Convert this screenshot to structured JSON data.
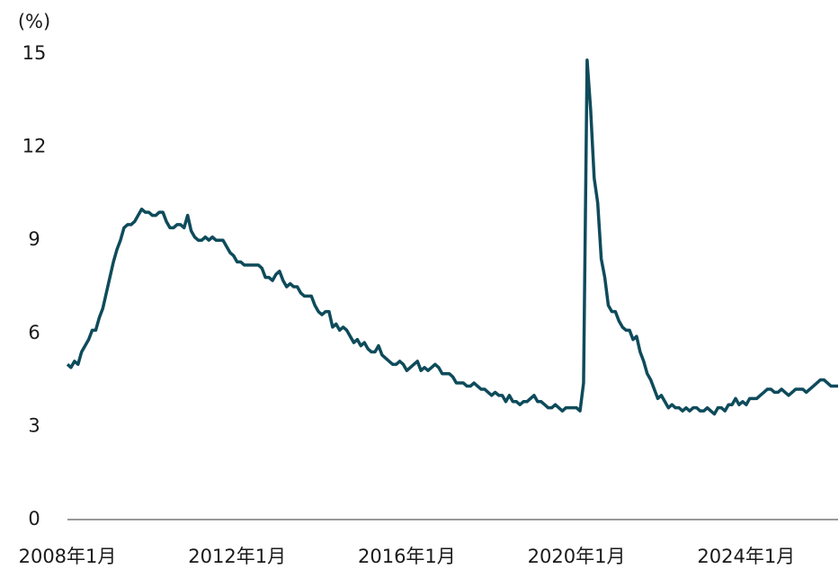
{
  "chart_data": {
    "type": "line",
    "y_label": "(%)",
    "x": [
      "2008-01",
      "2008-02",
      "2008-03",
      "2008-04",
      "2008-05",
      "2008-06",
      "2008-07",
      "2008-08",
      "2008-09",
      "2008-10",
      "2008-11",
      "2008-12",
      "2009-01",
      "2009-02",
      "2009-03",
      "2009-04",
      "2009-05",
      "2009-06",
      "2009-07",
      "2009-08",
      "2009-09",
      "2009-10",
      "2009-11",
      "2009-12",
      "2010-01",
      "2010-02",
      "2010-03",
      "2010-04",
      "2010-05",
      "2010-06",
      "2010-07",
      "2010-08",
      "2010-09",
      "2010-10",
      "2010-11",
      "2010-12",
      "2011-01",
      "2011-02",
      "2011-03",
      "2011-04",
      "2011-05",
      "2011-06",
      "2011-07",
      "2011-08",
      "2011-09",
      "2011-10",
      "2011-11",
      "2011-12",
      "2012-01",
      "2012-02",
      "2012-03",
      "2012-04",
      "2012-05",
      "2012-06",
      "2012-07",
      "2012-08",
      "2012-09",
      "2012-10",
      "2012-11",
      "2012-12",
      "2013-01",
      "2013-02",
      "2013-03",
      "2013-04",
      "2013-05",
      "2013-06",
      "2013-07",
      "2013-08",
      "2013-09",
      "2013-10",
      "2013-11",
      "2013-12",
      "2014-01",
      "2014-02",
      "2014-03",
      "2014-04",
      "2014-05",
      "2014-06",
      "2014-07",
      "2014-08",
      "2014-09",
      "2014-10",
      "2014-11",
      "2014-12",
      "2015-01",
      "2015-02",
      "2015-03",
      "2015-04",
      "2015-05",
      "2015-06",
      "2015-07",
      "2015-08",
      "2015-09",
      "2015-10",
      "2015-11",
      "2015-12",
      "2016-01",
      "2016-02",
      "2016-03",
      "2016-04",
      "2016-05",
      "2016-06",
      "2016-07",
      "2016-08",
      "2016-09",
      "2016-10",
      "2016-11",
      "2016-12",
      "2017-01",
      "2017-02",
      "2017-03",
      "2017-04",
      "2017-05",
      "2017-06",
      "2017-07",
      "2017-08",
      "2017-09",
      "2017-10",
      "2017-11",
      "2017-12",
      "2018-01",
      "2018-02",
      "2018-03",
      "2018-04",
      "2018-05",
      "2018-06",
      "2018-07",
      "2018-08",
      "2018-09",
      "2018-10",
      "2018-11",
      "2018-12",
      "2019-01",
      "2019-02",
      "2019-03",
      "2019-04",
      "2019-05",
      "2019-06",
      "2019-07",
      "2019-08",
      "2019-09",
      "2019-10",
      "2019-11",
      "2019-12",
      "2020-01",
      "2020-02",
      "2020-03",
      "2020-04",
      "2020-05",
      "2020-06",
      "2020-07",
      "2020-08",
      "2020-09",
      "2020-10",
      "2020-11",
      "2020-12",
      "2021-01",
      "2021-02",
      "2021-03",
      "2021-04",
      "2021-05",
      "2021-06",
      "2021-07",
      "2021-08",
      "2021-09",
      "2021-10",
      "2021-11",
      "2021-12",
      "2022-01",
      "2022-02",
      "2022-03",
      "2022-04",
      "2022-05",
      "2022-06",
      "2022-07",
      "2022-08",
      "2022-09",
      "2022-10",
      "2022-11",
      "2022-12",
      "2023-01",
      "2023-02",
      "2023-03",
      "2023-04",
      "2023-05",
      "2023-06",
      "2023-07",
      "2023-08",
      "2023-09",
      "2023-10",
      "2023-11",
      "2023-12",
      "2024-01",
      "2024-02",
      "2024-03",
      "2024-04",
      "2024-05",
      "2024-06",
      "2024-07",
      "2024-08",
      "2024-09",
      "2024-10",
      "2024-11",
      "2024-12",
      "2025-01",
      "2025-02",
      "2025-03",
      "2025-04",
      "2025-05",
      "2025-06",
      "2025-07",
      "2025-08",
      "2025-09",
      "2025-10",
      "2025-11",
      "2025-12",
      "2026-01",
      "2026-02",
      "2026-03"
    ],
    "series": [
      {
        "color": "#0e4b5b",
        "values": [
          5.0,
          4.9,
          5.1,
          5.0,
          5.4,
          5.6,
          5.8,
          6.1,
          6.1,
          6.5,
          6.8,
          7.3,
          7.8,
          8.3,
          8.7,
          9.0,
          9.4,
          9.5,
          9.5,
          9.6,
          9.8,
          10.0,
          9.9,
          9.9,
          9.8,
          9.8,
          9.9,
          9.9,
          9.6,
          9.4,
          9.4,
          9.5,
          9.5,
          9.4,
          9.8,
          9.3,
          9.1,
          9.0,
          9.0,
          9.1,
          9.0,
          9.1,
          9.0,
          9.0,
          9.0,
          8.8,
          8.6,
          8.5,
          8.3,
          8.3,
          8.2,
          8.2,
          8.2,
          8.2,
          8.2,
          8.1,
          7.8,
          7.8,
          7.7,
          7.9,
          8.0,
          7.7,
          7.5,
          7.6,
          7.5,
          7.5,
          7.3,
          7.2,
          7.2,
          7.2,
          6.9,
          6.7,
          6.6,
          6.7,
          6.7,
          6.2,
          6.3,
          6.1,
          6.2,
          6.1,
          5.9,
          5.7,
          5.8,
          5.6,
          5.7,
          5.5,
          5.4,
          5.4,
          5.6,
          5.3,
          5.2,
          5.1,
          5.0,
          5.0,
          5.1,
          5.0,
          4.8,
          4.9,
          5.0,
          5.1,
          4.8,
          4.9,
          4.8,
          4.9,
          5.0,
          4.9,
          4.7,
          4.7,
          4.7,
          4.6,
          4.4,
          4.4,
          4.4,
          4.3,
          4.3,
          4.4,
          4.3,
          4.2,
          4.2,
          4.1,
          4.0,
          4.1,
          4.0,
          4.0,
          3.8,
          4.0,
          3.8,
          3.8,
          3.7,
          3.8,
          3.8,
          3.9,
          4.0,
          3.8,
          3.8,
          3.7,
          3.6,
          3.6,
          3.7,
          3.6,
          3.5,
          3.6,
          3.6,
          3.6,
          3.6,
          3.5,
          4.4,
          14.8,
          13.2,
          11.0,
          10.2,
          8.4,
          7.8,
          6.9,
          6.7,
          6.7,
          6.4,
          6.2,
          6.1,
          6.1,
          5.8,
          5.9,
          5.4,
          5.1,
          4.7,
          4.5,
          4.2,
          3.9,
          4.0,
          3.8,
          3.6,
          3.7,
          3.6,
          3.6,
          3.5,
          3.6,
          3.5,
          3.6,
          3.6,
          3.5,
          3.5,
          3.6,
          3.5,
          3.4,
          3.6,
          3.6,
          3.5,
          3.7,
          3.7,
          3.9,
          3.7,
          3.8,
          3.7,
          3.9,
          3.9,
          3.9,
          4.0,
          4.1,
          4.2,
          4.2,
          4.1,
          4.1,
          4.2,
          4.1,
          4.0,
          4.1,
          4.2,
          4.2,
          4.2,
          4.1,
          4.2,
          4.3,
          4.4,
          4.5,
          4.5,
          4.4,
          4.3,
          4.3,
          4.3
        ]
      }
    ],
    "xlim": [
      "2008-01",
      "2026-03"
    ],
    "xticks": [
      {
        "value": "2008-01",
        "label": "2008年1月"
      },
      {
        "value": "2012-01",
        "label": "2012年1月"
      },
      {
        "value": "2016-01",
        "label": "2016年1月"
      },
      {
        "value": "2020-01",
        "label": "2020年1月"
      },
      {
        "value": "2024-01",
        "label": "2024年1月"
      }
    ],
    "ylim": [
      0,
      15
    ],
    "yticks": [
      0,
      3,
      6,
      9,
      12,
      15
    ],
    "grid": false
  }
}
